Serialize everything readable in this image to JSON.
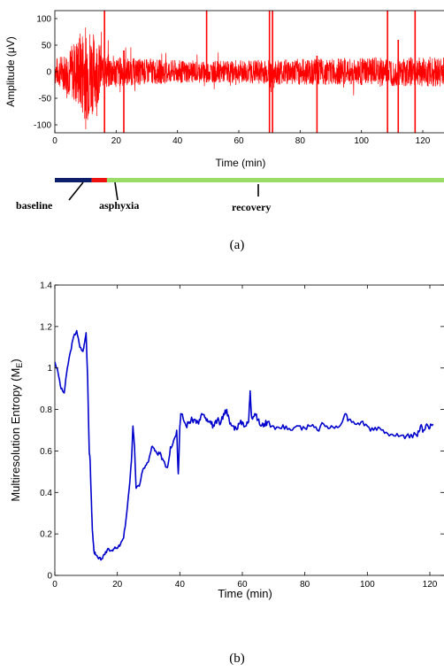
{
  "chart_data": [
    {
      "type": "line",
      "panel": "a",
      "caption": "(a)",
      "xlabel": "Time (min)",
      "ylabel": "Amplitude (μV)",
      "xlim": [
        0,
        130
      ],
      "ylim": [
        -115,
        115
      ],
      "xticks": [
        0,
        20,
        40,
        60,
        80,
        100,
        120
      ],
      "yticks": [
        100,
        50,
        0,
        -50,
        -100
      ],
      "color": "#ff0000",
      "grid": false,
      "series": [
        {
          "envelope": {
            "x": [
              0,
              3,
              6,
              9,
              11,
              13,
              15,
              16,
              17,
              20,
              22,
              25,
              30,
              40,
              50,
              60,
              70,
              80,
              90,
              100,
              110,
              120,
              125,
              130
            ],
            "amp": [
              25,
              35,
              55,
              85,
              95,
              70,
              50,
              20,
              35,
              30,
              28,
              26,
              24,
              22,
              20,
              22,
              24,
              25,
              25,
              26,
              27,
              28,
              28,
              28
            ]
          },
          "spikes": [
            {
              "x": 16.2,
              "lo": -115,
              "hi": 115
            },
            {
              "x": 22.5,
              "lo": -115,
              "hi": 40
            },
            {
              "x": 49.5,
              "lo": -20,
              "hi": 115
            },
            {
              "x": 70,
              "lo": -115,
              "hi": 115
            },
            {
              "x": 71,
              "lo": -115,
              "hi": 115
            },
            {
              "x": 85.5,
              "lo": -115,
              "hi": 30
            },
            {
              "x": 108.5,
              "lo": -115,
              "hi": 115
            },
            {
              "x": 112,
              "lo": -115,
              "hi": 60
            },
            {
              "x": 117.5,
              "lo": -115,
              "hi": 115
            }
          ]
        }
      ]
    },
    {
      "type": "line",
      "panel": "b",
      "caption": "(b)",
      "xlabel": "Time (min)",
      "ylabel": "Multiresolution Entropy (M",
      "ylabel_sub": "E",
      "ylabel_end": ")",
      "xlim": [
        0,
        125
      ],
      "ylim": [
        0,
        1.4
      ],
      "xticks": [
        0,
        20,
        40,
        60,
        80,
        100,
        120
      ],
      "yticks": [
        0,
        0.2,
        0.4,
        0.6,
        0.8,
        1,
        1.2,
        1.4
      ],
      "color": "#0000cc",
      "grid": false,
      "series": [
        {
          "x": [
            0,
            1,
            2,
            3,
            4,
            5,
            6,
            7,
            8,
            9,
            9.5,
            10,
            10.5,
            11,
            11.3,
            11.6,
            12,
            12.5,
            13,
            14,
            15,
            16,
            17,
            18,
            19,
            20,
            21,
            22,
            23,
            24,
            24.5,
            25,
            25.5,
            26,
            27,
            28,
            29,
            30,
            31,
            32,
            33,
            34,
            35,
            36,
            37,
            38,
            39,
            39.5,
            40,
            40.3,
            41,
            42,
            43,
            44,
            45,
            46,
            47,
            48,
            49,
            50,
            51,
            52,
            53,
            54,
            55,
            56,
            57,
            58,
            59,
            60,
            61,
            62,
            62.5,
            63,
            64,
            65,
            66,
            67,
            68,
            70,
            72,
            74,
            76,
            78,
            80,
            82,
            84,
            86,
            88,
            90,
            92,
            93,
            94,
            96,
            98,
            100,
            102,
            104,
            106,
            108,
            110,
            112,
            114,
            116,
            117,
            118,
            119,
            120,
            121
          ],
          "y": [
            1.03,
            0.98,
            0.9,
            0.88,
            1.0,
            1.08,
            1.15,
            1.18,
            1.1,
            1.08,
            1.12,
            1.17,
            0.95,
            0.6,
            0.55,
            0.4,
            0.22,
            0.12,
            0.1,
            0.08,
            0.08,
            0.1,
            0.13,
            0.12,
            0.13,
            0.13,
            0.15,
            0.18,
            0.3,
            0.45,
            0.55,
            0.72,
            0.62,
            0.42,
            0.43,
            0.5,
            0.53,
            0.55,
            0.62,
            0.6,
            0.58,
            0.58,
            0.55,
            0.52,
            0.62,
            0.65,
            0.7,
            0.49,
            0.72,
            0.78,
            0.76,
            0.72,
            0.74,
            0.75,
            0.75,
            0.73,
            0.78,
            0.76,
            0.74,
            0.73,
            0.72,
            0.75,
            0.73,
            0.78,
            0.8,
            0.73,
            0.72,
            0.71,
            0.73,
            0.74,
            0.72,
            0.74,
            0.89,
            0.76,
            0.78,
            0.75,
            0.72,
            0.73,
            0.74,
            0.72,
            0.71,
            0.72,
            0.7,
            0.72,
            0.71,
            0.72,
            0.7,
            0.73,
            0.71,
            0.72,
            0.74,
            0.78,
            0.75,
            0.73,
            0.74,
            0.72,
            0.7,
            0.71,
            0.69,
            0.68,
            0.67,
            0.66,
            0.68,
            0.67,
            0.72,
            0.7,
            0.73,
            0.71,
            0.73
          ]
        }
      ]
    }
  ],
  "phases": {
    "items": [
      {
        "label": "baseline",
        "start": 0,
        "end": 12,
        "color": "#0d1f6b"
      },
      {
        "label": "asphyxia",
        "start": 12,
        "end": 17,
        "color": "#ee1111"
      },
      {
        "label": "recovery",
        "start": 17,
        "end": 130,
        "color": "#99dd66"
      }
    ]
  }
}
